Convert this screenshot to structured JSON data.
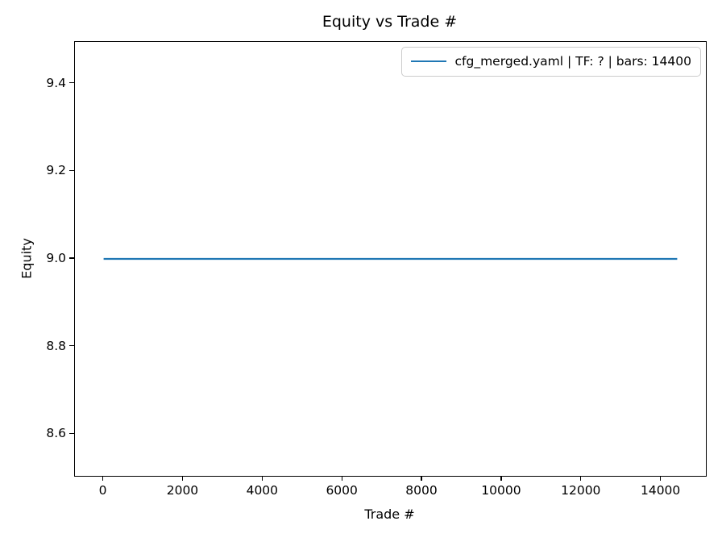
{
  "chart_data": {
    "type": "line",
    "title": "Equity vs Trade #",
    "xlabel": "Trade #",
    "ylabel": "Equity",
    "series": [
      {
        "name": "cfg_merged.yaml | TF: ? | bars: 14400",
        "color": "#1f77b4",
        "x": [
          0,
          14400
        ],
        "y": [
          9.0,
          9.0
        ]
      }
    ],
    "xlim": [
      -720,
      15120
    ],
    "ylim": [
      8.505,
      9.495
    ],
    "xticks": [
      0,
      2000,
      4000,
      6000,
      8000,
      10000,
      12000,
      14000
    ],
    "xtick_labels": [
      "0",
      "2000",
      "4000",
      "6000",
      "8000",
      "10000",
      "12000",
      "14000"
    ],
    "yticks": [
      8.6,
      8.8,
      9.0,
      9.2,
      9.4
    ],
    "ytick_labels": [
      "8.6",
      "8.8",
      "9.0",
      "9.2",
      "9.4"
    ],
    "legend_position": "upper right",
    "grid": false
  },
  "colors": {
    "line": "#1f77b4",
    "spine": "#000000",
    "text": "#000000",
    "legend_border": "#cccccc",
    "background": "#ffffff"
  }
}
